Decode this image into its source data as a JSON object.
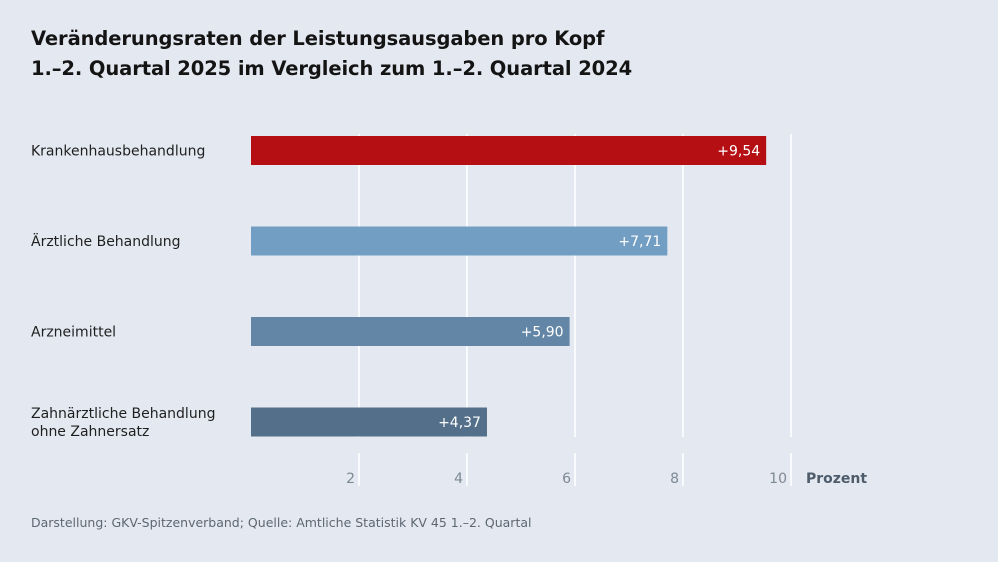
{
  "title": {
    "line1": "Veränderungsraten der Leistungsausgaben pro Kopf",
    "line2": "1.–2. Quartal 2025 im Vergleich zum 1.–2. Quartal 2024"
  },
  "source": "Darstellung: GKV-Spitzenverband; Quelle: Amtliche Statistik KV 45 1.–2. Quartal",
  "colors": {
    "background": "#e4e9f1",
    "gridline": "#ffffff",
    "bars": [
      "#b50f14",
      "#729ec3",
      "#6386a6",
      "#536f89"
    ]
  },
  "chart_data": {
    "type": "bar",
    "orientation": "horizontal",
    "title": "Veränderungsraten der Leistungsausgaben pro Kopf 1.–2. Quartal 2025 im Vergleich zum 1.–2. Quartal 2024",
    "categories": [
      [
        "Krankenhausbehandlung"
      ],
      [
        "Ärztliche Behandlung"
      ],
      [
        "Arzneimittel"
      ],
      [
        "Zahnärztliche Behandlung",
        "ohne Zahnersatz"
      ]
    ],
    "values": [
      9.54,
      7.71,
      5.9,
      4.37
    ],
    "value_labels": [
      "+9,54",
      "+7,71",
      "+5,90",
      "+4,37"
    ],
    "xlim": [
      0,
      10
    ],
    "xticks": [
      2,
      4,
      6,
      8,
      10
    ],
    "xlabel": "Prozent",
    "grid": true
  }
}
